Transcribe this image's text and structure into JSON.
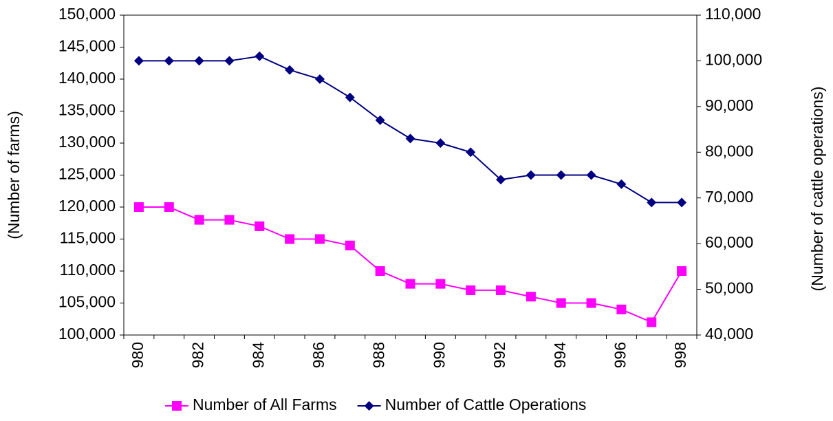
{
  "chart_data": {
    "type": "line",
    "categories": [
      "980",
      null,
      "982",
      null,
      "984",
      null,
      "986",
      null,
      "988",
      null,
      "990",
      null,
      "992",
      null,
      "994",
      null,
      "996",
      null,
      "998"
    ],
    "series": [
      {
        "name": "Number of All Farms",
        "color": "#ff00ff",
        "marker": "square",
        "values": [
          120000,
          120000,
          118000,
          118000,
          117000,
          115000,
          115000,
          114000,
          110000,
          108000,
          108000,
          107000,
          107000,
          106000,
          105000,
          105000,
          104000,
          102000,
          110000
        ]
      },
      {
        "name": "Number of Cattle Operations",
        "color": "#000080",
        "marker": "diamond",
        "axis": "y2",
        "values": [
          100000,
          100000,
          100000,
          100000,
          101000,
          98000,
          96000,
          92000,
          87000,
          83000,
          82000,
          80000,
          74000,
          75000,
          75000,
          75000,
          73000,
          69000,
          69000
        ]
      }
    ],
    "ylabel": "(Number of farms)",
    "y2label": "(Number of cattle operations)",
    "ylim": [
      100000,
      150000
    ],
    "yticks": [
      {
        "value": 100000,
        "label": "100,000"
      },
      {
        "value": 105000,
        "label": "105,000"
      },
      {
        "value": 110000,
        "label": "110,000"
      },
      {
        "value": 115000,
        "label": "115,000"
      },
      {
        "value": 120000,
        "label": "120,000"
      },
      {
        "value": 125000,
        "label": "125,000"
      },
      {
        "value": 130000,
        "label": "130,000"
      },
      {
        "value": 135000,
        "label": "135,000"
      },
      {
        "value": 140000,
        "label": "140,000"
      },
      {
        "value": 145000,
        "label": "145,000"
      },
      {
        "value": 150000,
        "label": "150,000"
      }
    ],
    "y2lim": [
      40000,
      110000
    ],
    "y2ticks": [
      {
        "value": 40000,
        "label": "40,000"
      },
      {
        "value": 50000,
        "label": "50,000"
      },
      {
        "value": 60000,
        "label": "60,000"
      },
      {
        "value": 70000,
        "label": "70,000"
      },
      {
        "value": 80000,
        "label": "80,000"
      },
      {
        "value": 90000,
        "label": "90,000"
      },
      {
        "value": 100000,
        "label": "100,000"
      },
      {
        "value": 110000,
        "label": "110,000"
      }
    ],
    "legend": "bottom",
    "grid": false
  }
}
